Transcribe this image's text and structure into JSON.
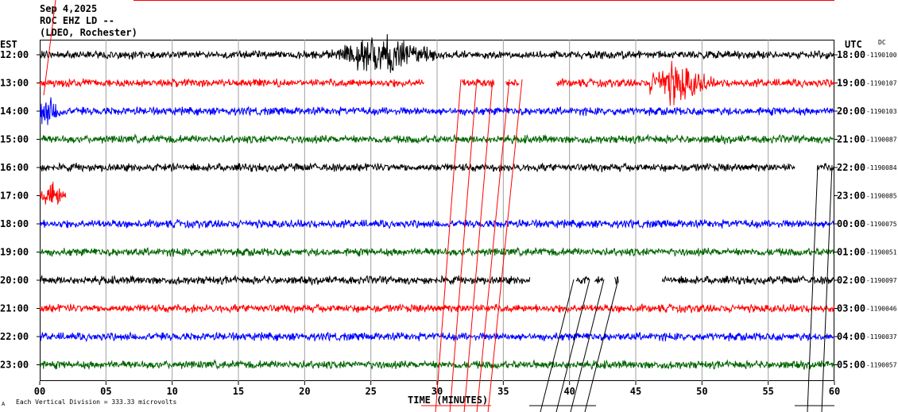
{
  "header": {
    "date": "Sep 4,2025",
    "station": "ROC EHZ LD --",
    "network": "(LDEO, Rochester)"
  },
  "chart_data": {
    "type": "line",
    "title": "",
    "left_axis_label": "EST",
    "right_axis_label": "UTC",
    "dc_label": "DC",
    "xlabel": "TIME (MINUTES)",
    "xlim": [
      0,
      60
    ],
    "x_ticks": [
      "00",
      "05",
      "10",
      "15",
      "20",
      "25",
      "30",
      "35",
      "40",
      "45",
      "50",
      "55",
      "60"
    ],
    "scale_note": "Each Vertical Division =  333.33 microvolts",
    "trace_colors": [
      "#000000",
      "#ff0000",
      "#0000ff",
      "#006400"
    ],
    "rows": [
      {
        "est": "12:00",
        "utc": "18:00",
        "dc": "-1190100",
        "color": "#000000",
        "segments": [
          [
            0,
            60
          ]
        ],
        "events": [
          {
            "start": 21,
            "end": 30,
            "peak": 26,
            "amp": 2.2
          }
        ]
      },
      {
        "est": "13:00",
        "utc": "19:00",
        "dc": "-1190107",
        "color": "#ff0000",
        "segments": [
          [
            0,
            29
          ],
          [
            31.9,
            34.3
          ],
          [
            35.2,
            36.2
          ],
          [
            39,
            60
          ]
        ],
        "events": [
          {
            "start": 46,
            "end": 52,
            "peak": 48,
            "amp": 2.4
          }
        ]
      },
      {
        "est": "14:00",
        "utc": "20:00",
        "dc": "-1190103",
        "color": "#0000ff",
        "segments": [
          [
            0,
            60
          ]
        ],
        "events": [
          {
            "start": 0,
            "end": 3,
            "peak": 0.5,
            "amp": 1.6
          }
        ]
      },
      {
        "est": "15:00",
        "utc": "21:00",
        "dc": "-1190087",
        "color": "#006400",
        "segments": [
          [
            0,
            60
          ]
        ],
        "events": []
      },
      {
        "est": "16:00",
        "utc": "22:00",
        "dc": "-1190084",
        "color": "#000000",
        "segments": [
          [
            0,
            57
          ],
          [
            58.7,
            60
          ]
        ],
        "events": []
      },
      {
        "est": "17:00",
        "utc": "23:00",
        "dc": "-1190085",
        "color": "#ff0000",
        "segments": [
          [
            0,
            2
          ]
        ],
        "events": [
          {
            "start": 0,
            "end": 2,
            "peak": 1,
            "amp": 1.5
          }
        ]
      },
      {
        "est": "18:00",
        "utc": "00:00",
        "dc": "-1190075",
        "color": "#0000ff",
        "segments": [
          [
            0,
            60
          ]
        ],
        "events": []
      },
      {
        "est": "19:00",
        "utc": "01:00",
        "dc": "-1190051",
        "color": "#006400",
        "segments": [
          [
            0,
            60
          ]
        ],
        "events": []
      },
      {
        "est": "20:00",
        "utc": "02:00",
        "dc": "-1190097",
        "color": "#000000",
        "segments": [
          [
            0,
            37
          ],
          [
            40.5,
            41.5
          ],
          [
            41.9,
            42.5
          ],
          [
            43.4,
            43.7
          ],
          [
            47,
            60
          ]
        ],
        "events": []
      },
      {
        "est": "21:00",
        "utc": "03:00",
        "dc": "-1190046",
        "color": "#ff0000",
        "segments": [
          [
            0,
            60
          ]
        ],
        "events": []
      },
      {
        "est": "22:00",
        "utc": "04:00",
        "dc": "-1190037",
        "color": "#0000ff",
        "segments": [
          [
            0,
            60
          ]
        ],
        "events": []
      },
      {
        "est": "23:00",
        "utc": "05:00",
        "dc": "-1190057",
        "color": "#006400",
        "segments": [
          [
            0,
            60
          ]
        ],
        "events": []
      }
    ]
  }
}
